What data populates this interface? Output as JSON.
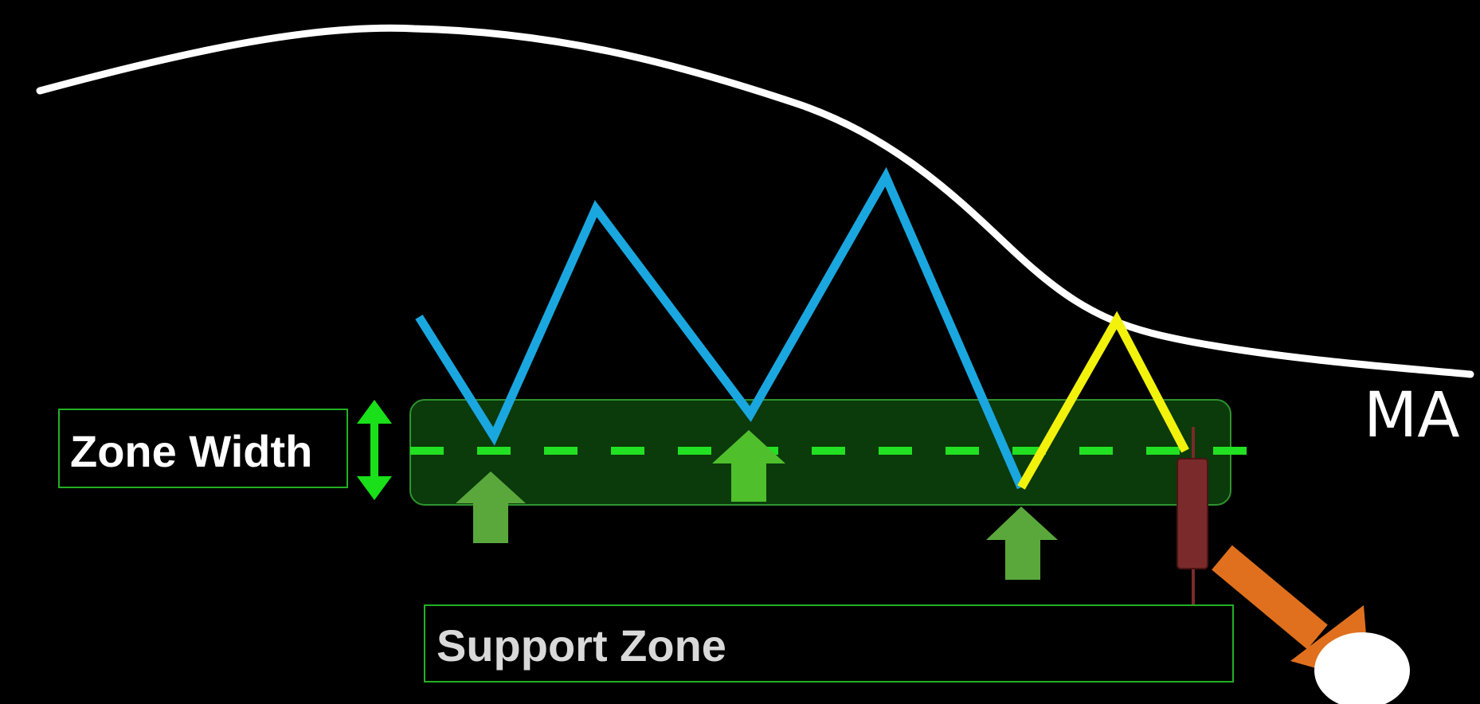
{
  "labels": {
    "zone_width": "Zone Width",
    "support_zone": "Support Zone",
    "moving_average": "MA"
  },
  "colors": {
    "background": "#000000",
    "moving_average_line": "#ffffff",
    "price_path": "#1aa7e0",
    "retest_path": "#f2f20c",
    "support_zone_fill": "#0b3a0b",
    "support_zone_border": "#3fc43f",
    "support_dashed_line": "#22e022",
    "zone_width_arrow": "#19e019",
    "label_box_border": "#23b023",
    "bounce_arrows": "#5aa83c",
    "breakout_candle_body": "#7a2a2a",
    "breakdown_arrow": "#e0701e"
  },
  "icons": {
    "zone_width_arrow": "double-headed-vertical-arrow",
    "bounce_arrows": "up-arrow",
    "breakdown_arrow": "down-right-arrow",
    "breakout_candle": "bearish-candlestick"
  }
}
